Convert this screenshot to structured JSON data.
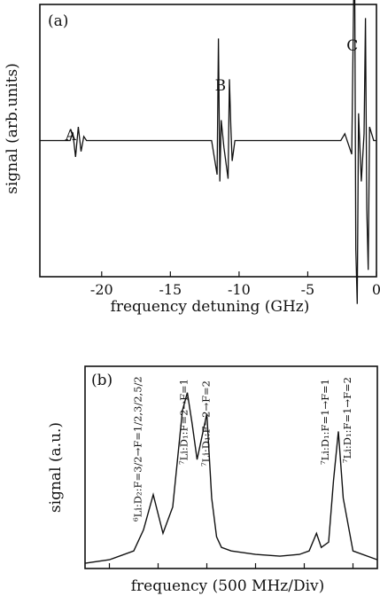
{
  "chart_data": [
    {
      "panel": "(a)",
      "type": "line",
      "xlabel": "frequency detuning (GHz)",
      "ylabel": "signal (arb.units)",
      "xlim": [
        -24.5,
        0
      ],
      "xticks": [
        -20,
        -15,
        -10,
        -5,
        0
      ],
      "xtick_labels": [
        "-20",
        "-15",
        "-10",
        "-5",
        "0"
      ],
      "ylim": [
        -1,
        1
      ],
      "grid": false,
      "annotations": [
        {
          "text": "A",
          "x": -22.0
        },
        {
          "text": "B",
          "x": -11.1
        },
        {
          "text": "C",
          "x": -1.5
        }
      ],
      "series": [
        {
          "x": [
            -24.5,
            -22.3,
            -22.1,
            -21.9,
            -21.7,
            -21.5,
            -21.3,
            -21.1,
            -12.0,
            -11.6,
            -11.5,
            -11.4,
            -11.3,
            -11.1,
            -10.8,
            -10.7,
            -10.6,
            -10.5,
            -10.3,
            -2.6,
            -2.3,
            -1.8,
            -1.6,
            -1.5,
            -1.4,
            -1.3,
            -1.1,
            -0.9,
            -0.8,
            -0.7,
            -0.6,
            -0.5,
            -0.2,
            0
          ],
          "y": [
            0.0,
            0.0,
            0.06,
            -0.12,
            0.1,
            -0.08,
            0.03,
            0.0,
            0.0,
            -0.25,
            0.75,
            -0.3,
            0.15,
            -0.05,
            -0.28,
            0.45,
            0.1,
            -0.15,
            0.0,
            0.0,
            0.05,
            -0.1,
            1.55,
            -0.8,
            -1.2,
            0.2,
            -0.3,
            0.05,
            0.9,
            -0.5,
            -0.95,
            0.1,
            0.0,
            0.0
          ]
        }
      ]
    },
    {
      "panel": "(b)",
      "type": "line",
      "xlabel": "frequency (500 MHz/Div)",
      "ylabel": "signal (a.u.)",
      "xlim": [
        0,
        6
      ],
      "ylim": [
        0,
        1.15
      ],
      "grid": false,
      "annotations": [
        {
          "text": "⁶Li:D₂:F=3/2→F=1/2,3/2,5/2",
          "x": 1.15
        },
        {
          "text": "⁷Li:D₁:F=2→F=1",
          "x": 2.1
        },
        {
          "text": "⁷Li:D₁:F=2→F=2",
          "x": 2.55
        },
        {
          "text": "⁷Li:D₁:F=1→F=1",
          "x": 5.0
        },
        {
          "text": "⁷Li:D₁:F=1→F=2",
          "x": 5.45
        }
      ],
      "series": [
        {
          "x": [
            0.0,
            0.5,
            1.0,
            1.2,
            1.4,
            1.6,
            1.8,
            2.0,
            2.1,
            2.2,
            2.3,
            2.4,
            2.5,
            2.6,
            2.7,
            2.8,
            3.0,
            3.5,
            4.0,
            4.4,
            4.6,
            4.75,
            4.85,
            5.0,
            5.1,
            5.2,
            5.3,
            5.5,
            6.0
          ],
          "y": [
            0.03,
            0.05,
            0.1,
            0.22,
            0.42,
            0.2,
            0.35,
            0.9,
            1.0,
            0.82,
            0.62,
            0.75,
            0.88,
            0.4,
            0.18,
            0.12,
            0.1,
            0.08,
            0.07,
            0.08,
            0.1,
            0.2,
            0.12,
            0.15,
            0.5,
            0.78,
            0.4,
            0.1,
            0.05
          ]
        }
      ]
    }
  ]
}
